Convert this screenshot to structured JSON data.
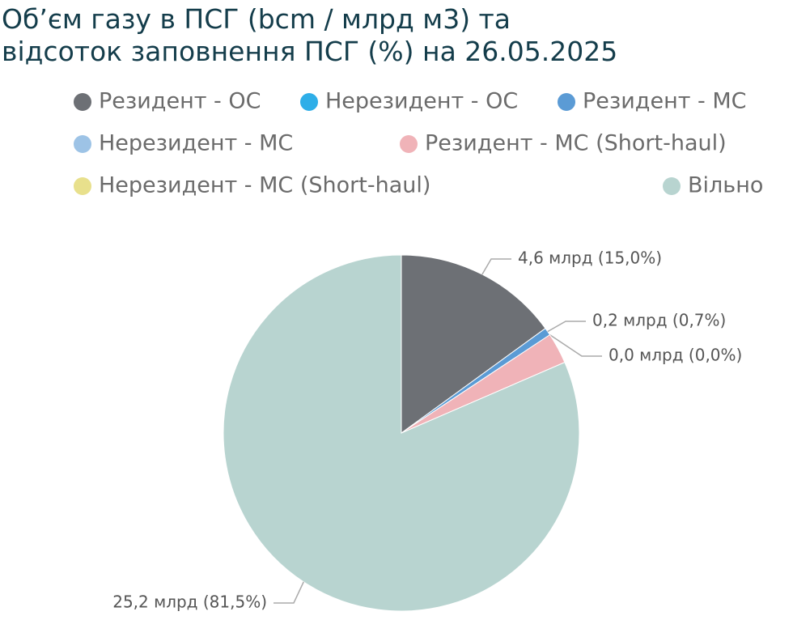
{
  "chart_data": {
    "type": "pie",
    "title": [
      "Об’єм газу в ПСГ (bcm / млрд м3) та",
      "відсоток заповнення ПСГ (%) на 26.05.2025"
    ],
    "categories": [
      "Резидент - ОС",
      "Нерезидент - ОС",
      "Резидент - МС",
      "Нерезидент - МС",
      "Резидент -  МС (Short-haul)",
      "Нерезидент -  МС (Short-haul)",
      "Вільно"
    ],
    "values": [
      15.0,
      0,
      0.7,
      0,
      2.8,
      0,
      81.5
    ],
    "value_labels": [
      "4,6 млрд (15,0%)",
      null,
      "0,2 млрд (0,7%)",
      "0,0 млрд (0,0%)",
      null,
      null,
      "25,2 млрд (81,5%)"
    ],
    "colors": [
      "#6d7075",
      "#2eaee8",
      "#5b9bd5",
      "#9dc3e6",
      "#f0b3b8",
      "#e8e08c",
      "#b8d4d0"
    ]
  }
}
